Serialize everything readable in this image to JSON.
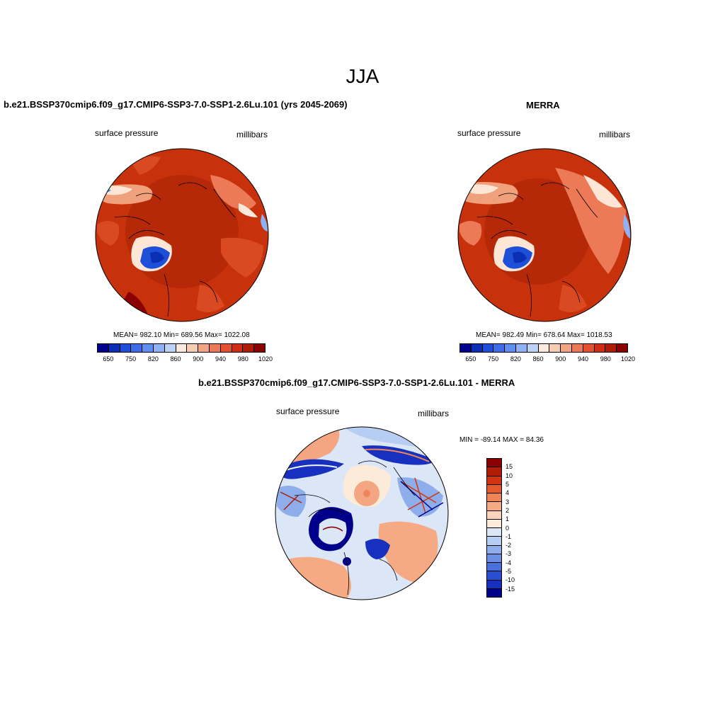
{
  "page": {
    "title": "JJA"
  },
  "panels": {
    "model": {
      "title": "b.e21.BSSP370cmip6.f09_g17.CMIP6-SSP3-7.0-SSP1-2.6Lu.101 (yrs 2045-2069)",
      "variable": "surface pressure",
      "units": "millibars",
      "stats": "MEAN= 982.10  Min= 689.56  Max= 1022.08"
    },
    "obs": {
      "title": "MERRA",
      "variable": "surface pressure",
      "units": "millibars",
      "stats": "MEAN= 982.49  Min= 678.64  Max= 1018.53"
    },
    "diff": {
      "title": "b.e21.BSSP370cmip6.f09_g17.CMIP6-SSP3-7.0-SSP1-2.6Lu.101 - MERRA",
      "variable": "surface pressure",
      "units": "millibars",
      "stats": "MIN = -89.14 MAX =  84.36"
    }
  },
  "colorbars": {
    "field": {
      "colors": [
        "#00008b",
        "#0b2fb4",
        "#1e4fd8",
        "#3b6ee8",
        "#5f8ff0",
        "#8fb2f4",
        "#bcd3f7",
        "#fbe9d9",
        "#f7cdb1",
        "#f2a582",
        "#ec7a56",
        "#e4512f",
        "#cf2e12",
        "#b01c07",
        "#8b0000"
      ],
      "tick_labels": [
        "650",
        "750",
        "820",
        "860",
        "900",
        "940",
        "980",
        "1020"
      ]
    },
    "diff": {
      "colors": [
        "#8b0000",
        "#b01c07",
        "#d13412",
        "#e45a2c",
        "#ee8558",
        "#f5aa84",
        "#fbd4bb",
        "#fdebd9",
        "#dbe6f6",
        "#b8cdf2",
        "#8eadeb",
        "#6a8fe3",
        "#4a70dc",
        "#2a4ed2",
        "#1730c0",
        "#00008b"
      ],
      "tick_labels": [
        "15",
        "10",
        "5",
        "4",
        "3",
        "2",
        "1",
        "0",
        "-1",
        "-2",
        "-3",
        "-4",
        "-5",
        "-10",
        "-15"
      ]
    }
  },
  "map_colors": {
    "high": "#b52808",
    "mid": "#d94a22",
    "light": "#f0a07a",
    "pale": "#fde6d6",
    "low": "#1e4fd8",
    "lowdark": "#0b2fb4",
    "diff_pos": "#f4a582",
    "diff_neg": "#1730c0",
    "diff_pale": "#fdebd9"
  }
}
